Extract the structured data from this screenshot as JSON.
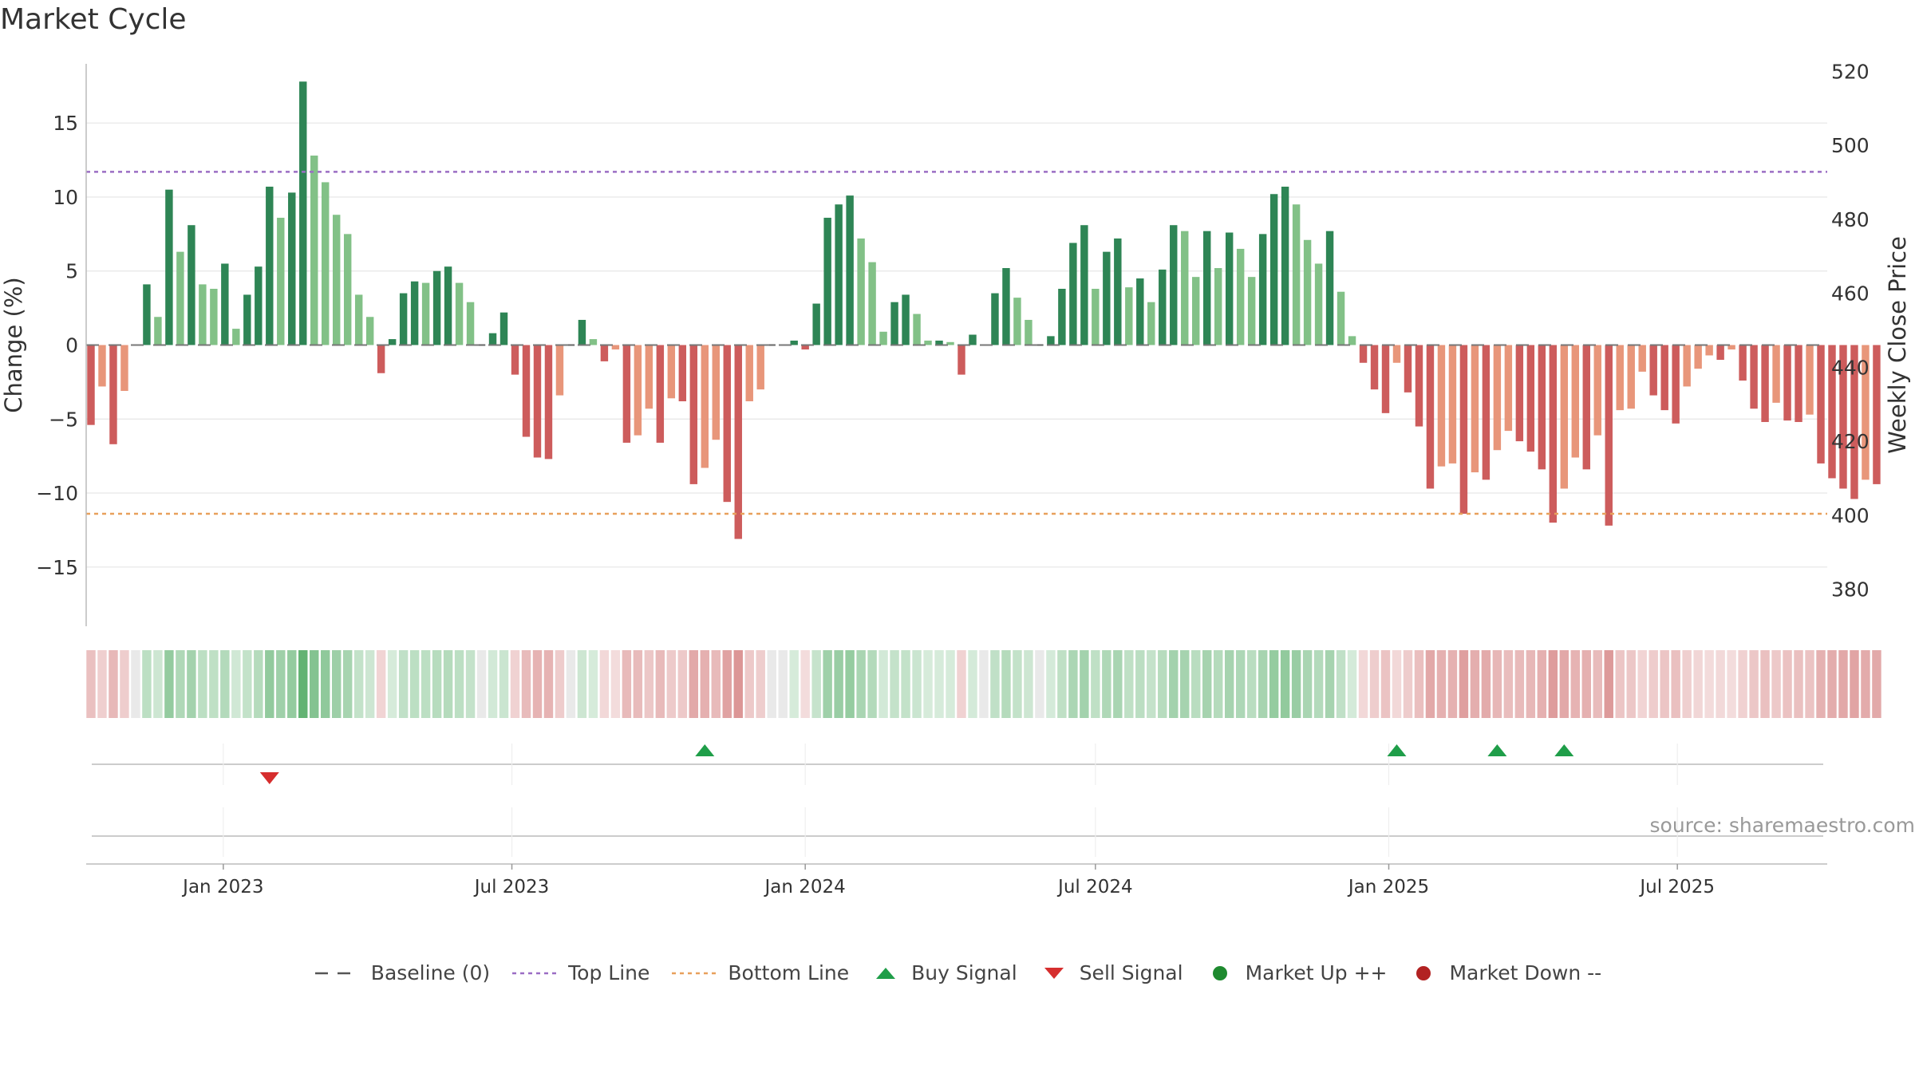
{
  "title": "Market Cycle",
  "watermark": "source: sharemaestro.com",
  "colors": {
    "pos_dark": "#2e8555",
    "pos_light": "#82c187",
    "neg_dark": "#cd5c5c",
    "neg_light": "#e8967a",
    "top_line": "#9b6dc4",
    "bottom_line": "#e8a05c",
    "buy": "#1f9e49",
    "sell": "#d62e2e",
    "up": "#1e8a2f",
    "down": "#b22222"
  },
  "chart_data": {
    "type": "bar",
    "title": "Market Cycle",
    "ylabel": "Change (%)",
    "y2label": "Weekly Close Price",
    "ylim": [
      -19,
      19
    ],
    "y2lim": [
      370,
      522
    ],
    "yticks": [
      15,
      10,
      5,
      0,
      -5,
      -10,
      -15
    ],
    "yticklabels": [
      "15",
      "10",
      "5",
      "0",
      "−5",
      "−10",
      "−15"
    ],
    "y2ticks": [
      520,
      500,
      480,
      460,
      440,
      420,
      400,
      380
    ],
    "xlim": [
      "2022-10-07",
      "2025-10-03"
    ],
    "xticks": [
      "2023-01-01",
      "2023-07-01",
      "2024-01-01",
      "2024-07-01",
      "2025-01-01",
      "2025-07-01"
    ],
    "xticklabels": [
      "Jan 2023",
      "Jul 2023",
      "Jan 2024",
      "Jul 2024",
      "Jan 2025",
      "Jul 2025"
    ],
    "start_date": "2022-10-10",
    "interval_days": 7,
    "top_line": 11.7,
    "bottom_line": -11.4,
    "values": [
      -5.4,
      -2.8,
      -6.7,
      -3.1,
      0,
      4.1,
      1.9,
      10.5,
      6.3,
      8.1,
      4.1,
      3.8,
      5.5,
      1.1,
      3.4,
      5.3,
      10.7,
      8.6,
      10.3,
      17.8,
      12.8,
      11.0,
      8.8,
      7.5,
      3.4,
      1.9,
      -1.9,
      0.4,
      3.5,
      4.3,
      4.2,
      5.0,
      5.3,
      4.2,
      2.9,
      0,
      0.8,
      2.2,
      -2.0,
      -6.2,
      -7.6,
      -7.7,
      -3.4,
      0,
      1.7,
      0.4,
      -1.1,
      -0.3,
      -6.6,
      -6.1,
      -4.3,
      -6.6,
      -3.6,
      -3.8,
      -9.4,
      -8.3,
      -6.4,
      -10.6,
      -13.1,
      -3.8,
      -3.0,
      0,
      0,
      0.3,
      -0.3,
      2.8,
      8.6,
      9.5,
      10.1,
      7.2,
      5.6,
      0.9,
      2.9,
      3.4,
      2.1,
      0.3,
      0.3,
      0.2,
      -2.0,
      0.7,
      0,
      3.5,
      5.2,
      3.2,
      1.7,
      0,
      0.6,
      3.8,
      6.9,
      8.1,
      3.8,
      6.3,
      7.2,
      3.9,
      4.5,
      2.9,
      5.1,
      8.1,
      7.7,
      4.6,
      7.7,
      5.2,
      7.6,
      6.5,
      4.6,
      7.5,
      10.2,
      10.7,
      9.5,
      7.1,
      5.5,
      7.7,
      3.6,
      0.6,
      -1.2,
      -3.0,
      -4.6,
      -1.2,
      -3.2,
      -5.5,
      -9.7,
      -8.2,
      -8.0,
      -11.4,
      -8.6,
      -9.1,
      -7.1,
      -5.8,
      -6.5,
      -7.2,
      -8.4,
      -12.0,
      -9.7,
      -7.6,
      -8.4,
      -6.1,
      -12.2,
      -4.4,
      -4.3,
      -1.8,
      -3.4,
      -4.4,
      -5.3,
      -2.8,
      -1.6,
      -0.7,
      -1.0,
      -0.3,
      -2.4,
      -4.3,
      -5.2,
      -3.9,
      -5.1,
      -5.2,
      -4.7,
      -8.0,
      -9.0,
      -9.7,
      -10.4,
      -9.1,
      -9.4
    ],
    "buy_signals": [
      "2023-10-30",
      "2025-01-06",
      "2025-03-10",
      "2025-04-21"
    ],
    "sell_signals": [
      "2023-01-30"
    ]
  },
  "legend": [
    {
      "label": "Baseline (0)",
      "icon": "dash"
    },
    {
      "label": "Top Line",
      "icon": "dot-purple"
    },
    {
      "label": "Bottom Line",
      "icon": "dot-orange"
    },
    {
      "label": "Buy Signal",
      "icon": "triangle-up"
    },
    {
      "label": "Sell Signal",
      "icon": "triangle-down"
    },
    {
      "label": "Market Up ++",
      "icon": "circle-green"
    },
    {
      "label": "Market Down --",
      "icon": "circle-red"
    }
  ]
}
